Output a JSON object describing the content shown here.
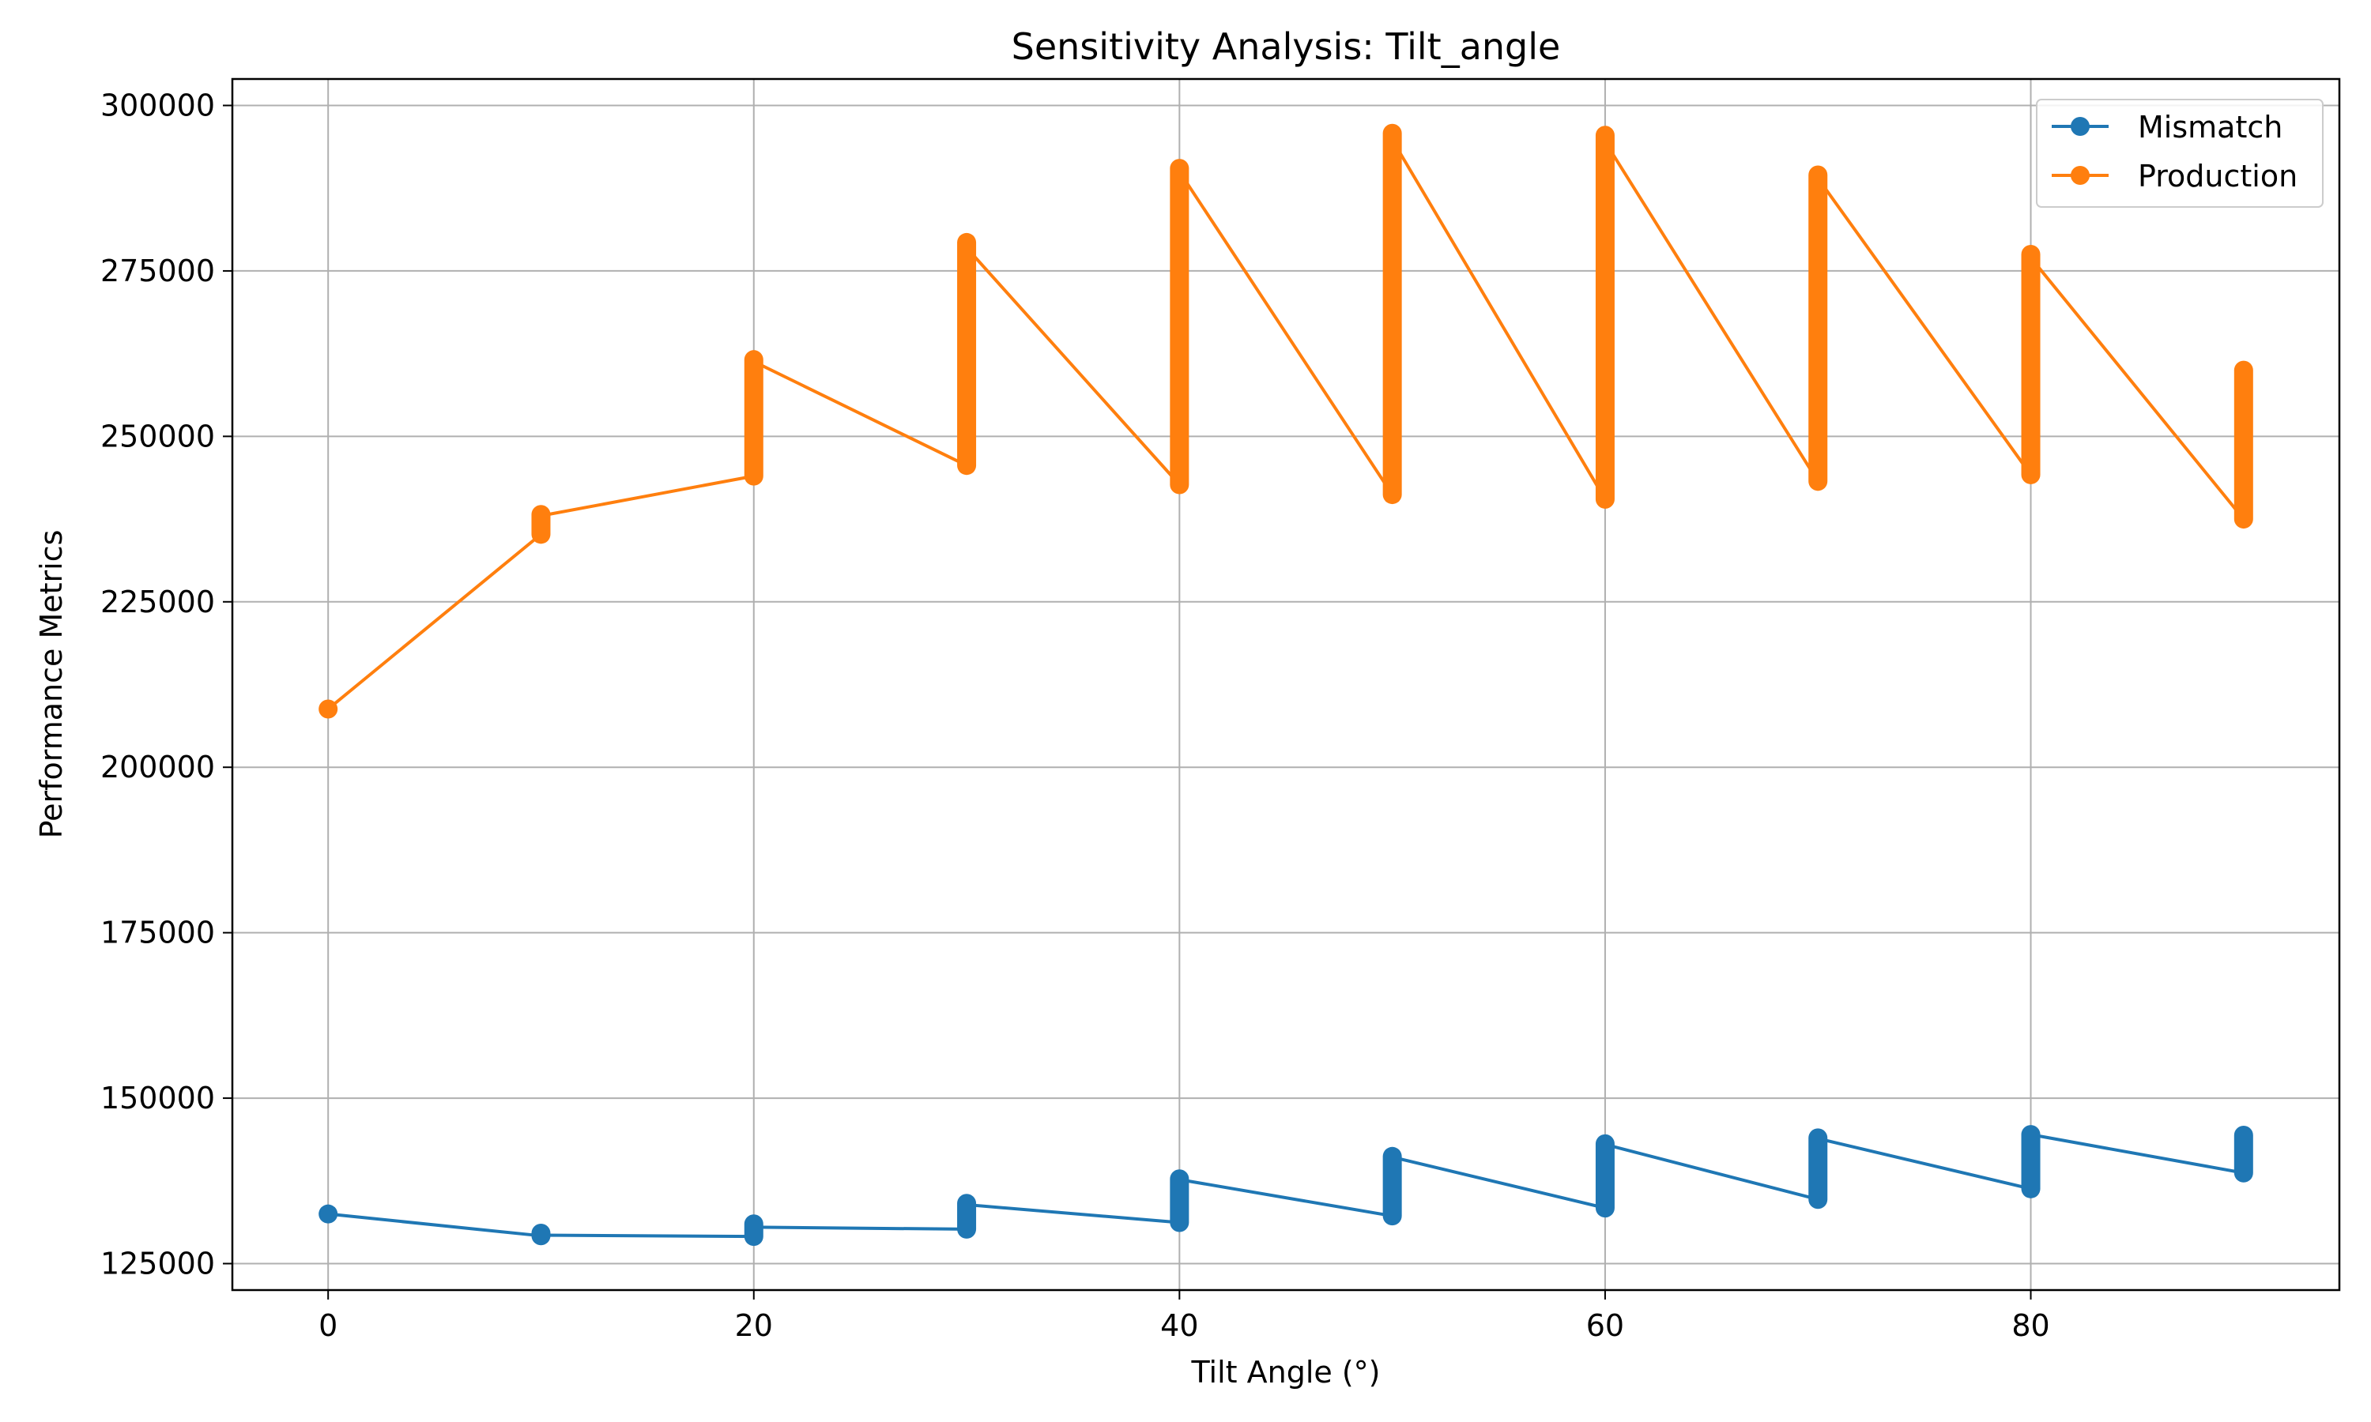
{
  "chart_data": {
    "type": "line",
    "title": "Sensitivity Analysis: Tilt_angle",
    "xlabel": "Tilt Angle (°)",
    "ylabel": "Performance Metrics",
    "xlim": [
      -4.5,
      94.5
    ],
    "ylim": [
      121000,
      304000
    ],
    "xticks": [
      0,
      20,
      40,
      60,
      80
    ],
    "yticks": [
      125000,
      150000,
      175000,
      200000,
      225000,
      250000,
      275000,
      300000
    ],
    "grid": true,
    "legend_position": "top-right",
    "series": [
      {
        "name": "Mismatch",
        "color": "#1f77b4",
        "segments": [
          {
            "x": 0,
            "min": 132500,
            "max": 132500,
            "end": 132500
          },
          {
            "x": 10,
            "min": 129200,
            "max": 129600,
            "end": 129300
          },
          {
            "x": 20,
            "min": 129100,
            "max": 131000,
            "end": 130500
          },
          {
            "x": 30,
            "min": 130200,
            "max": 134100,
            "end": 133900
          },
          {
            "x": 40,
            "min": 131200,
            "max": 137800,
            "end": 137700
          },
          {
            "x": 50,
            "min": 132200,
            "max": 141200,
            "end": 141100
          },
          {
            "x": 60,
            "min": 133400,
            "max": 143100,
            "end": 143000
          },
          {
            "x": 70,
            "min": 134700,
            "max": 144000,
            "end": 143900
          },
          {
            "x": 80,
            "min": 136300,
            "max": 144500,
            "end": 144500
          },
          {
            "x": 90,
            "min": 138700,
            "max": 144400,
            "end": 138700
          }
        ]
      },
      {
        "name": "Production",
        "color": "#ff7f0e",
        "segments": [
          {
            "x": 0,
            "min": 208800,
            "max": 208800,
            "end": 208800
          },
          {
            "x": 10,
            "min": 235200,
            "max": 238200,
            "end": 238000
          },
          {
            "x": 20,
            "min": 244000,
            "max": 261600,
            "end": 261300
          },
          {
            "x": 30,
            "min": 245600,
            "max": 279300,
            "end": 278500
          },
          {
            "x": 40,
            "min": 242700,
            "max": 290500,
            "end": 290000
          },
          {
            "x": 50,
            "min": 241200,
            "max": 295800,
            "end": 294800
          },
          {
            "x": 60,
            "min": 240500,
            "max": 295500,
            "end": 294500
          },
          {
            "x": 70,
            "min": 243200,
            "max": 289500,
            "end": 289000
          },
          {
            "x": 80,
            "min": 244200,
            "max": 277500,
            "end": 277000
          },
          {
            "x": 90,
            "min": 237500,
            "max": 260000,
            "end": 238200
          }
        ]
      }
    ]
  }
}
